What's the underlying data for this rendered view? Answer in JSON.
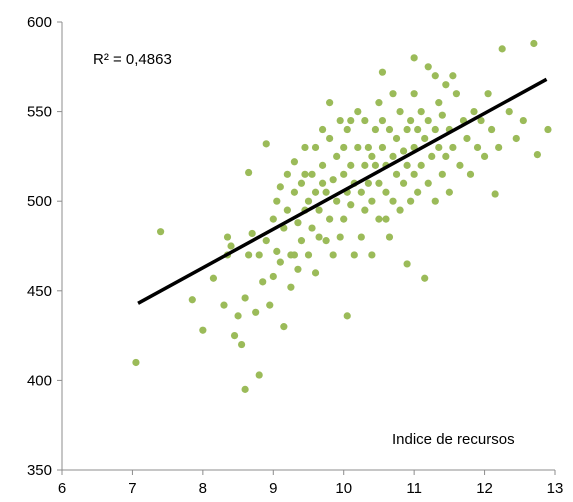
{
  "chart_data": {
    "type": "scatter",
    "title": "",
    "xlabel": "",
    "ylabel": "",
    "xlim": [
      6,
      13
    ],
    "ylim": [
      350,
      600
    ],
    "xticks": [
      6,
      7,
      8,
      9,
      10,
      11,
      12,
      13
    ],
    "yticks": [
      350,
      400,
      450,
      500,
      550,
      600
    ],
    "grid": false,
    "legend": "none",
    "colors": {
      "points": "#9bbb59",
      "trendline": "#000000",
      "axis": "#8c8c8c"
    },
    "annotations": {
      "r_squared": "R² = 0,4863",
      "x_note": "Indice de recursos"
    },
    "trendline": {
      "x": [
        7.08,
        12.88
      ],
      "y": [
        443,
        568
      ]
    },
    "series": [
      {
        "points": [
          [
            7.05,
            410
          ],
          [
            7.4,
            483
          ],
          [
            7.85,
            445
          ],
          [
            8.0,
            428
          ],
          [
            8.15,
            457
          ],
          [
            8.3,
            442
          ],
          [
            8.35,
            470
          ],
          [
            8.35,
            480
          ],
          [
            8.4,
            475
          ],
          [
            8.45,
            425
          ],
          [
            8.5,
            436
          ],
          [
            8.55,
            420
          ],
          [
            8.6,
            395
          ],
          [
            8.6,
            446
          ],
          [
            8.65,
            470
          ],
          [
            8.65,
            516
          ],
          [
            8.7,
            482
          ],
          [
            8.75,
            438
          ],
          [
            8.8,
            403
          ],
          [
            8.8,
            470
          ],
          [
            8.85,
            455
          ],
          [
            8.9,
            478
          ],
          [
            8.9,
            532
          ],
          [
            8.95,
            442
          ],
          [
            9.0,
            458
          ],
          [
            9.0,
            490
          ],
          [
            9.05,
            472
          ],
          [
            9.05,
            500
          ],
          [
            9.1,
            466
          ],
          [
            9.1,
            508
          ],
          [
            9.15,
            430
          ],
          [
            9.15,
            485
          ],
          [
            9.2,
            495
          ],
          [
            9.2,
            515
          ],
          [
            9.25,
            452
          ],
          [
            9.25,
            470
          ],
          [
            9.3,
            505
          ],
          [
            9.3,
            522
          ],
          [
            9.35,
            462
          ],
          [
            9.35,
            488
          ],
          [
            9.4,
            478
          ],
          [
            9.4,
            510
          ],
          [
            9.45,
            495
          ],
          [
            9.45,
            530
          ],
          [
            9.5,
            470
          ],
          [
            9.5,
            500
          ],
          [
            9.55,
            485
          ],
          [
            9.55,
            515
          ],
          [
            9.6,
            460
          ],
          [
            9.6,
            505
          ],
          [
            9.6,
            530
          ],
          [
            9.65,
            480
          ],
          [
            9.65,
            495
          ],
          [
            9.7,
            520
          ],
          [
            9.7,
            540
          ],
          [
            9.75,
            478
          ],
          [
            9.75,
            505
          ],
          [
            9.8,
            490
          ],
          [
            9.8,
            535
          ],
          [
            9.8,
            555
          ],
          [
            9.85,
            470
          ],
          [
            9.85,
            512
          ],
          [
            9.9,
            500
          ],
          [
            9.9,
            525
          ],
          [
            9.95,
            480
          ],
          [
            9.95,
            545
          ],
          [
            10.0,
            490
          ],
          [
            10.0,
            515
          ],
          [
            10.0,
            530
          ],
          [
            10.05,
            436
          ],
          [
            10.05,
            505
          ],
          [
            10.05,
            540
          ],
          [
            10.1,
            498
          ],
          [
            10.1,
            520
          ],
          [
            10.15,
            470
          ],
          [
            10.15,
            510
          ],
          [
            10.2,
            530
          ],
          [
            10.2,
            550
          ],
          [
            10.25,
            480
          ],
          [
            10.25,
            505
          ],
          [
            10.3,
            495
          ],
          [
            10.3,
            520
          ],
          [
            10.3,
            545
          ],
          [
            10.35,
            510
          ],
          [
            10.35,
            530
          ],
          [
            10.4,
            470
          ],
          [
            10.4,
            500
          ],
          [
            10.45,
            520
          ],
          [
            10.45,
            540
          ],
          [
            10.5,
            490
          ],
          [
            10.5,
            510
          ],
          [
            10.5,
            555
          ],
          [
            10.55,
            530
          ],
          [
            10.55,
            545
          ],
          [
            10.6,
            505
          ],
          [
            10.6,
            520
          ],
          [
            10.65,
            480
          ],
          [
            10.65,
            540
          ],
          [
            10.7,
            500
          ],
          [
            10.7,
            525
          ],
          [
            10.7,
            560
          ],
          [
            10.75,
            515
          ],
          [
            10.75,
            535
          ],
          [
            10.8,
            495
          ],
          [
            10.8,
            550
          ],
          [
            10.85,
            510
          ],
          [
            10.85,
            528
          ],
          [
            10.9,
            465
          ],
          [
            10.9,
            540
          ],
          [
            10.95,
            500
          ],
          [
            10.95,
            545
          ],
          [
            11.0,
            515
          ],
          [
            11.0,
            530
          ],
          [
            11.0,
            560
          ],
          [
            11.05,
            505
          ],
          [
            11.05,
            540
          ],
          [
            11.1,
            520
          ],
          [
            11.1,
            550
          ],
          [
            11.15,
            457
          ],
          [
            11.15,
            535
          ],
          [
            11.2,
            510
          ],
          [
            11.2,
            545
          ],
          [
            11.25,
            525
          ],
          [
            11.3,
            500
          ],
          [
            11.3,
            540
          ],
          [
            11.35,
            530
          ],
          [
            11.35,
            555
          ],
          [
            11.4,
            515
          ],
          [
            11.4,
            548
          ],
          [
            11.45,
            525
          ],
          [
            11.5,
            505
          ],
          [
            11.5,
            540
          ],
          [
            11.55,
            530
          ],
          [
            11.6,
            560
          ],
          [
            11.65,
            520
          ],
          [
            11.7,
            545
          ],
          [
            11.75,
            535
          ],
          [
            11.8,
            515
          ],
          [
            11.85,
            550
          ],
          [
            11.9,
            530
          ],
          [
            11.95,
            545
          ],
          [
            12.0,
            525
          ],
          [
            12.05,
            560
          ],
          [
            12.1,
            540
          ],
          [
            12.15,
            504
          ],
          [
            12.2,
            530
          ],
          [
            12.25,
            585
          ],
          [
            12.35,
            550
          ],
          [
            12.45,
            535
          ],
          [
            12.55,
            545
          ],
          [
            12.7,
            588
          ],
          [
            12.75,
            526
          ],
          [
            12.9,
            540
          ],
          [
            9.3,
            470
          ],
          [
            9.45,
            515
          ],
          [
            9.7,
            510
          ],
          [
            10.1,
            545
          ],
          [
            10.4,
            525
          ],
          [
            10.6,
            490
          ],
          [
            10.9,
            520
          ],
          [
            11.2,
            575
          ],
          [
            11.3,
            570
          ],
          [
            11.45,
            565
          ],
          [
            11.55,
            570
          ],
          [
            11.0,
            580
          ],
          [
            10.55,
            572
          ]
        ]
      }
    ]
  }
}
